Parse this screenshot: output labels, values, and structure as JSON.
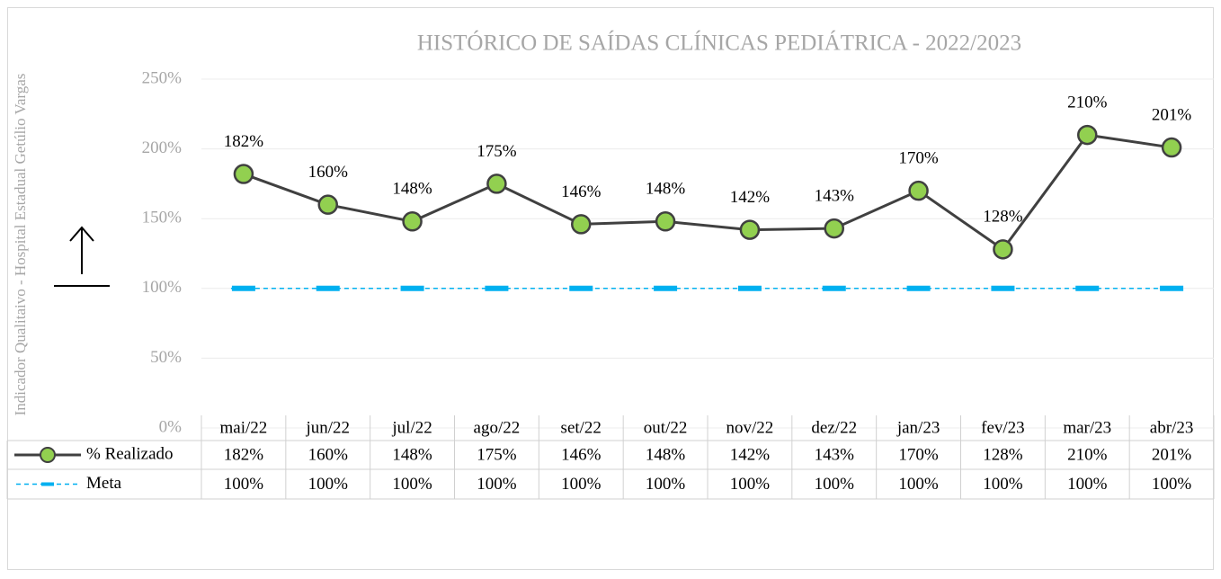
{
  "chart_data": {
    "type": "line",
    "title": "HISTÓRICO DE SAÍDAS CLÍNICAS PEDIÁTRICA - 2022/2023",
    "y_axis_label": "Indicador Qualitaivo - Hospital Estadual Getúlio Vargas",
    "categories": [
      "mai/22",
      "jun/22",
      "jul/22",
      "ago/22",
      "set/22",
      "out/22",
      "nov/22",
      "dez/22",
      "jan/23",
      "fev/23",
      "mar/23",
      "abr/23"
    ],
    "series": [
      {
        "name": "% Realizado",
        "color": "#92d050",
        "line_color": "#404040",
        "values": [
          182,
          160,
          148,
          175,
          146,
          148,
          142,
          143,
          170,
          128,
          210,
          201
        ],
        "value_labels": [
          "182%",
          "160%",
          "148%",
          "175%",
          "146%",
          "148%",
          "142%",
          "143%",
          "170%",
          "128%",
          "210%",
          "201%"
        ]
      },
      {
        "name": "Meta",
        "color": "#00b0f0",
        "values": [
          100,
          100,
          100,
          100,
          100,
          100,
          100,
          100,
          100,
          100,
          100,
          100
        ],
        "value_labels": [
          "100%",
          "100%",
          "100%",
          "100%",
          "100%",
          "100%",
          "100%",
          "100%",
          "100%",
          "100%",
          "100%",
          "100%"
        ]
      }
    ],
    "ylim": [
      0,
      250
    ],
    "yticks": [
      {
        "value": 0,
        "label": "0%"
      },
      {
        "value": 50,
        "label": "50%"
      },
      {
        "value": 100,
        "label": "100%"
      },
      {
        "value": 150,
        "label": "150%"
      },
      {
        "value": 200,
        "label": "200%"
      },
      {
        "value": 250,
        "label": "250%"
      }
    ],
    "grid": true
  }
}
